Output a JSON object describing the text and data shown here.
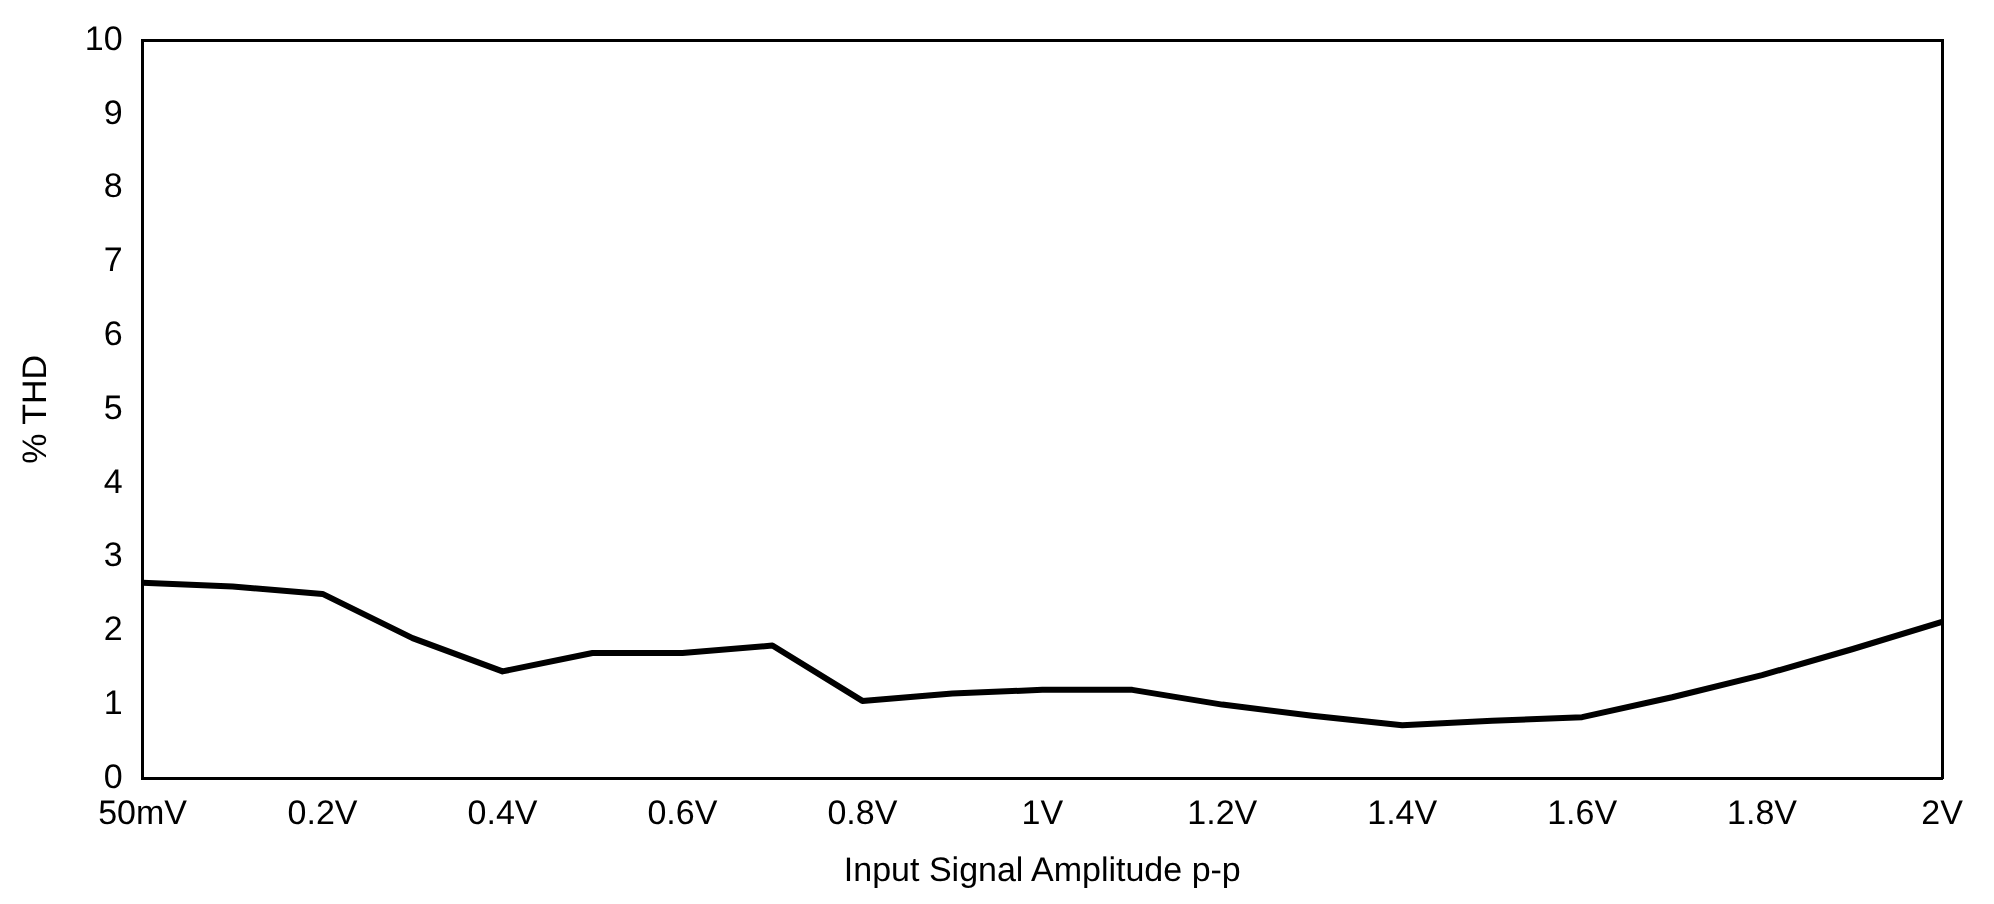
{
  "chart_data": {
    "type": "line",
    "xlabel": "Input Signal Amplitude p-p",
    "ylabel": "% THD",
    "categories": [
      "50mV",
      null,
      "0.2V",
      null,
      "0.4V",
      null,
      "0.6V",
      null,
      "0.8V",
      null,
      "1V",
      null,
      "1.2V",
      null,
      "1.4V",
      null,
      "1.6V",
      null,
      "1.8V",
      null,
      "2V"
    ],
    "series": [
      {
        "color": "#000000",
        "values": [
          2.65,
          2.6,
          2.5,
          1.9,
          1.45,
          1.7,
          1.7,
          1.8,
          1.05,
          1.15,
          1.2,
          1.2,
          1.0,
          0.85,
          0.72,
          0.78,
          0.83,
          1.1,
          1.4,
          1.75,
          2.12
        ]
      }
    ],
    "ylim": [
      0,
      10
    ],
    "yticks": [
      0,
      1,
      2,
      3,
      4,
      5,
      6,
      7,
      8,
      9,
      10
    ],
    "grid": false,
    "legend": false,
    "marker": "none",
    "line_style": "solid"
  }
}
